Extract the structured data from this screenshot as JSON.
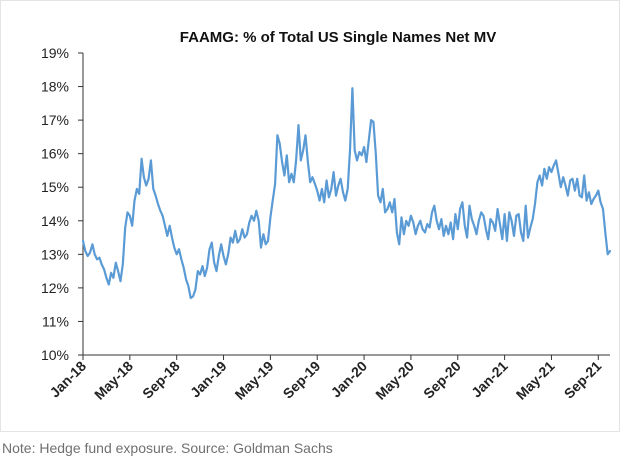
{
  "caption": "Note: Hedge fund exposure. Source: Goldman Sachs",
  "colors": {
    "line": "#5b9bd5",
    "axis": "#333333",
    "text": "#222222",
    "caption": "#707070"
  },
  "chart_data": {
    "type": "line",
    "title": "FAAMG: % of Total US Single Names Net MV",
    "xlabel": "",
    "ylabel": "",
    "ylim": [
      10,
      19
    ],
    "y_ticks": [
      10,
      11,
      12,
      13,
      14,
      15,
      16,
      17,
      18,
      19
    ],
    "y_tick_labels": [
      "10%",
      "11%",
      "12%",
      "13%",
      "14%",
      "15%",
      "16%",
      "17%",
      "18%",
      "19%"
    ],
    "x_range": [
      0,
      45
    ],
    "x_ticks": [
      0,
      4,
      8,
      12,
      16,
      20,
      24,
      28,
      32,
      36,
      40,
      44
    ],
    "x_tick_labels": [
      "Jan-18",
      "May-18",
      "Sep-18",
      "Jan-19",
      "May-19",
      "Sep-19",
      "Jan-20",
      "May-20",
      "Sep-20",
      "Jan-21",
      "May-21",
      "Sep-21"
    ],
    "legend": "none",
    "grid": false,
    "series": [
      {
        "name": "FAAMG % of Total US Single Names Net MV",
        "x": [
          0.0,
          0.2,
          0.4,
          0.6,
          0.8,
          1.0,
          1.2,
          1.4,
          1.6,
          1.8,
          2.0,
          2.2,
          2.4,
          2.6,
          2.8,
          3.0,
          3.2,
          3.4,
          3.6,
          3.8,
          4.0,
          4.2,
          4.4,
          4.6,
          4.8,
          5.0,
          5.2,
          5.4,
          5.6,
          5.8,
          6.0,
          6.2,
          6.4,
          6.6,
          6.8,
          7.0,
          7.2,
          7.4,
          7.6,
          7.8,
          8.0,
          8.2,
          8.4,
          8.6,
          8.8,
          9.0,
          9.2,
          9.4,
          9.6,
          9.8,
          10.0,
          10.2,
          10.4,
          10.6,
          10.8,
          11.0,
          11.2,
          11.4,
          11.6,
          11.8,
          12.0,
          12.2,
          12.4,
          12.6,
          12.8,
          13.0,
          13.2,
          13.4,
          13.6,
          13.8,
          14.0,
          14.2,
          14.4,
          14.6,
          14.8,
          15.0,
          15.2,
          15.4,
          15.6,
          15.8,
          16.0,
          16.2,
          16.4,
          16.6,
          16.8,
          17.0,
          17.2,
          17.4,
          17.6,
          17.8,
          18.0,
          18.2,
          18.4,
          18.6,
          18.8,
          19.0,
          19.2,
          19.4,
          19.6,
          19.8,
          20.0,
          20.2,
          20.4,
          20.6,
          20.8,
          21.0,
          21.2,
          21.4,
          21.6,
          21.8,
          22.0,
          22.2,
          22.4,
          22.6,
          22.8,
          23.0,
          23.2,
          23.4,
          23.6,
          23.8,
          24.0,
          24.2,
          24.4,
          24.6,
          24.8,
          25.0,
          25.2,
          25.4,
          25.6,
          25.8,
          26.0,
          26.2,
          26.4,
          26.6,
          26.8,
          27.0,
          27.2,
          27.4,
          27.6,
          27.8,
          28.0,
          28.2,
          28.4,
          28.6,
          28.8,
          29.0,
          29.2,
          29.4,
          29.6,
          29.8,
          30.0,
          30.2,
          30.4,
          30.6,
          30.8,
          31.0,
          31.2,
          31.4,
          31.6,
          31.8,
          32.0,
          32.2,
          32.4,
          32.6,
          32.8,
          33.0,
          33.2,
          33.4,
          33.6,
          33.8,
          34.0,
          34.2,
          34.4,
          34.6,
          34.8,
          35.0,
          35.2,
          35.4,
          35.6,
          35.8,
          36.0,
          36.2,
          36.4,
          36.6,
          36.8,
          37.0,
          37.2,
          37.4,
          37.6,
          37.8,
          38.0,
          38.2,
          38.4,
          38.6,
          38.8,
          39.0,
          39.2,
          39.4,
          39.6,
          39.8,
          40.0,
          40.2,
          40.4,
          40.6,
          40.8,
          41.0,
          41.2,
          41.4,
          41.6,
          41.8,
          42.0,
          42.2,
          42.4,
          42.6,
          42.8,
          43.0,
          43.2,
          43.4,
          43.6,
          43.8,
          44.0,
          44.2,
          44.4,
          44.6,
          44.8,
          45.0
        ],
        "values": [
          13.4,
          13.1,
          12.95,
          13.05,
          13.3,
          13.0,
          12.85,
          12.9,
          12.7,
          12.55,
          12.3,
          12.1,
          12.45,
          12.3,
          12.75,
          12.5,
          12.2,
          12.7,
          13.8,
          14.25,
          14.15,
          13.85,
          14.6,
          14.95,
          14.8,
          15.85,
          15.3,
          15.05,
          15.25,
          15.8,
          14.95,
          14.75,
          14.5,
          14.3,
          14.15,
          13.85,
          13.55,
          13.85,
          13.5,
          13.2,
          13.0,
          13.15,
          12.85,
          12.6,
          12.25,
          12.05,
          11.7,
          11.75,
          11.95,
          12.5,
          12.4,
          12.65,
          12.35,
          12.6,
          13.15,
          13.35,
          12.75,
          12.5,
          12.95,
          13.3,
          12.95,
          12.7,
          13.0,
          13.5,
          13.35,
          13.7,
          13.35,
          13.45,
          13.75,
          13.5,
          13.6,
          13.95,
          14.15,
          14.0,
          14.3,
          14.0,
          13.2,
          13.6,
          13.3,
          13.4,
          14.1,
          14.6,
          15.1,
          16.55,
          16.3,
          15.75,
          15.35,
          15.95,
          15.15,
          15.4,
          15.15,
          15.8,
          16.85,
          15.8,
          16.1,
          16.55,
          15.75,
          15.15,
          15.3,
          15.1,
          14.9,
          14.6,
          14.95,
          14.55,
          15.2,
          14.7,
          14.95,
          15.45,
          14.75,
          15.05,
          15.25,
          14.85,
          14.6,
          14.95,
          16.1,
          17.95,
          16.1,
          15.8,
          16.05,
          15.95,
          16.2,
          15.75,
          16.4,
          17.0,
          16.95,
          16.0,
          14.75,
          14.55,
          14.95,
          14.25,
          14.35,
          14.55,
          14.25,
          14.65,
          13.65,
          13.3,
          14.1,
          13.6,
          14.0,
          13.85,
          14.15,
          13.95,
          13.6,
          13.85,
          14.0,
          13.75,
          13.65,
          13.9,
          13.8,
          14.25,
          14.45,
          14.0,
          13.75,
          14.05,
          13.55,
          13.85,
          13.6,
          13.95,
          13.45,
          14.2,
          13.75,
          14.35,
          14.55,
          13.85,
          13.5,
          14.45,
          14.05,
          13.85,
          13.6,
          14.0,
          14.25,
          14.15,
          13.75,
          13.45,
          14.05,
          13.95,
          13.7,
          14.35,
          13.9,
          13.45,
          14.2,
          13.4,
          14.25,
          14.0,
          13.55,
          14.15,
          14.2,
          13.65,
          13.4,
          14.45,
          13.5,
          13.8,
          14.05,
          14.5,
          15.15,
          15.35,
          15.05,
          15.55,
          15.25,
          15.6,
          15.45,
          15.65,
          15.8,
          15.4,
          15.0,
          15.3,
          15.05,
          14.75,
          15.2,
          15.25,
          14.9,
          15.25,
          14.75,
          14.7,
          15.35,
          14.6,
          14.85,
          14.5,
          14.65,
          14.75,
          14.9,
          14.55,
          14.35,
          13.65,
          13.0,
          13.1
        ]
      }
    ]
  }
}
